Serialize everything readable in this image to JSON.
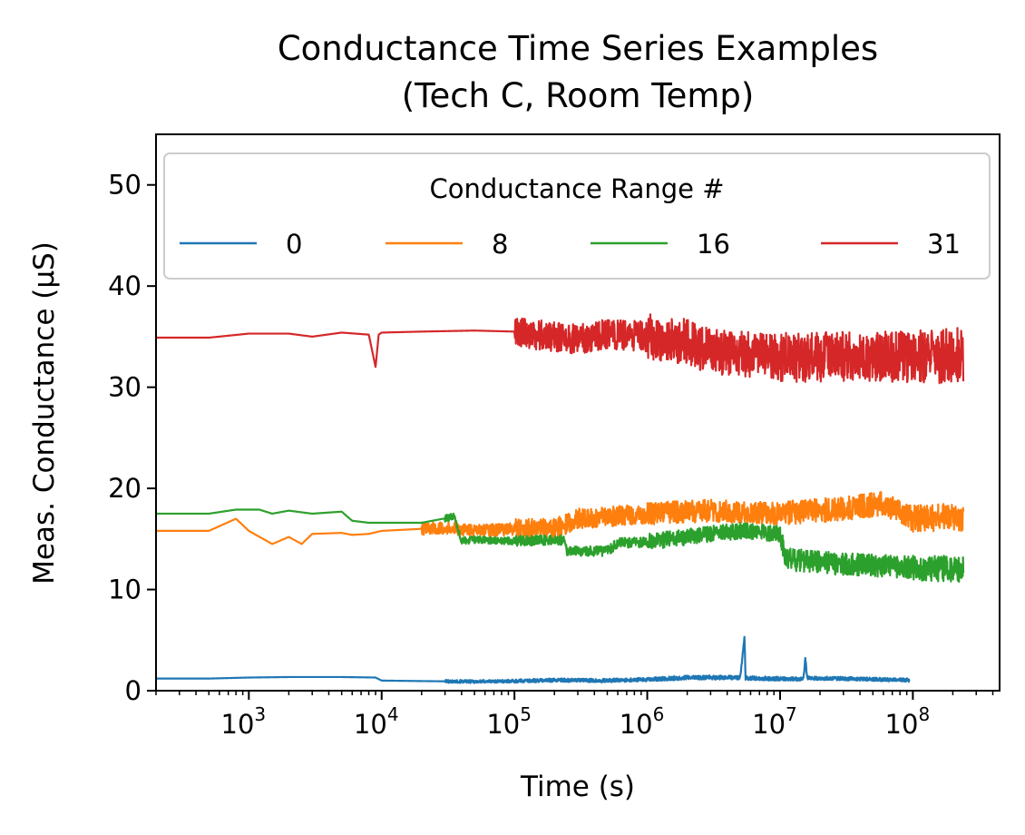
{
  "chart_data": {
    "type": "line",
    "title_line1": "Conductance Time Series Examples",
    "title_line2": "(Tech C, Room Temp)",
    "xlabel": "Time (s)",
    "ylabel": "Meas. Conductance (µS)",
    "x_scale": "log",
    "xlim": [
      200,
      450000000
    ],
    "ylim": [
      0,
      55
    ],
    "grid": false,
    "x_ticks": [
      {
        "base": "10",
        "exp": "3",
        "value": 1000
      },
      {
        "base": "10",
        "exp": "4",
        "value": 10000
      },
      {
        "base": "10",
        "exp": "5",
        "value": 100000
      },
      {
        "base": "10",
        "exp": "6",
        "value": 1000000
      },
      {
        "base": "10",
        "exp": "7",
        "value": 10000000
      },
      {
        "base": "10",
        "exp": "8",
        "value": 100000000
      }
    ],
    "y_ticks": [
      0,
      10,
      20,
      30,
      40,
      50
    ],
    "legend": {
      "title": "Conductance Range #",
      "placement": "top",
      "columns": 4
    },
    "series": [
      {
        "name": "0",
        "color": "#1f77b4",
        "x": [
          200,
          500,
          1000,
          2000,
          5000,
          9000,
          10000,
          20000,
          50000,
          100000,
          200000,
          500000,
          1000000,
          2000000,
          5000000,
          5400000,
          5500000,
          5600000,
          8000000,
          15000000,
          15500000,
          16000000,
          30000000,
          60000000,
          94000000
        ],
        "y": [
          1.2,
          1.2,
          1.3,
          1.35,
          1.35,
          1.3,
          1.0,
          0.95,
          0.9,
          0.95,
          1.05,
          1.0,
          1.1,
          1.3,
          1.3,
          5.2,
          1.2,
          1.25,
          1.2,
          1.15,
          3.2,
          1.25,
          1.2,
          1.1,
          1.05
        ],
        "noise_start": 30000,
        "noise": [
          0.3,
          0.3,
          0.35,
          0.4,
          0.35,
          0.35
        ]
      },
      {
        "name": "8",
        "color": "#ff7f0e",
        "x": [
          200,
          500,
          800,
          1000,
          1500,
          2000,
          2500,
          3000,
          5000,
          6000,
          8000,
          10000,
          20000,
          30000,
          50000,
          100000,
          200000,
          300000,
          1000000,
          3000000,
          10000000,
          30000000,
          60000000,
          100000000,
          240000000
        ],
        "y": [
          15.8,
          15.8,
          17.0,
          15.8,
          14.5,
          15.2,
          14.5,
          15.5,
          15.6,
          15.4,
          15.5,
          15.8,
          16.0,
          16.1,
          15.8,
          16.0,
          16.0,
          17.0,
          17.5,
          17.8,
          17.5,
          18.0,
          18.5,
          17.0,
          17.2
        ],
        "noise_start": 20000,
        "noise": [
          0.6,
          1.2,
          2.0,
          2.2,
          2.4,
          2.8
        ]
      },
      {
        "name": "16",
        "color": "#2ca02c",
        "x": [
          200,
          500,
          800,
          1200,
          1500,
          2000,
          3000,
          5000,
          6000,
          8000,
          10000,
          20000,
          35000,
          40000,
          50000,
          100000,
          240000,
          250000,
          500000,
          600000,
          1000000,
          3000000,
          5000000,
          10000000,
          11000000,
          30000000,
          240000000
        ],
        "y": [
          17.5,
          17.5,
          17.9,
          17.9,
          17.5,
          17.8,
          17.5,
          17.7,
          16.8,
          16.6,
          16.6,
          16.6,
          17.2,
          14.8,
          14.9,
          14.8,
          14.9,
          13.8,
          13.8,
          14.6,
          14.7,
          15.5,
          15.8,
          15.5,
          13.0,
          12.5,
          12.0
        ],
        "noise_start": 30000,
        "noise": [
          0.6,
          0.7,
          1.0,
          1.6,
          2.2,
          2.6
        ]
      },
      {
        "name": "31",
        "color": "#d62728",
        "x": [
          200,
          500,
          1000,
          2000,
          3000,
          5000,
          8000,
          9000,
          9500,
          10000,
          20000,
          50000,
          100000,
          200000,
          300000,
          500000,
          1000000,
          2000000,
          3000000,
          10000000,
          30000000,
          100000000,
          240000000
        ],
        "y": [
          34.9,
          34.9,
          35.3,
          35.3,
          35.0,
          35.4,
          35.2,
          32.0,
          35.2,
          35.4,
          35.5,
          35.6,
          35.5,
          35.0,
          34.8,
          35.2,
          35.0,
          34.5,
          33.5,
          33.0,
          33.0,
          33.0,
          33.2
        ],
        "noise_start": 100000,
        "noise": [
          1.5,
          2.0,
          3.0,
          4.5,
          5.0,
          5.5
        ]
      }
    ]
  }
}
